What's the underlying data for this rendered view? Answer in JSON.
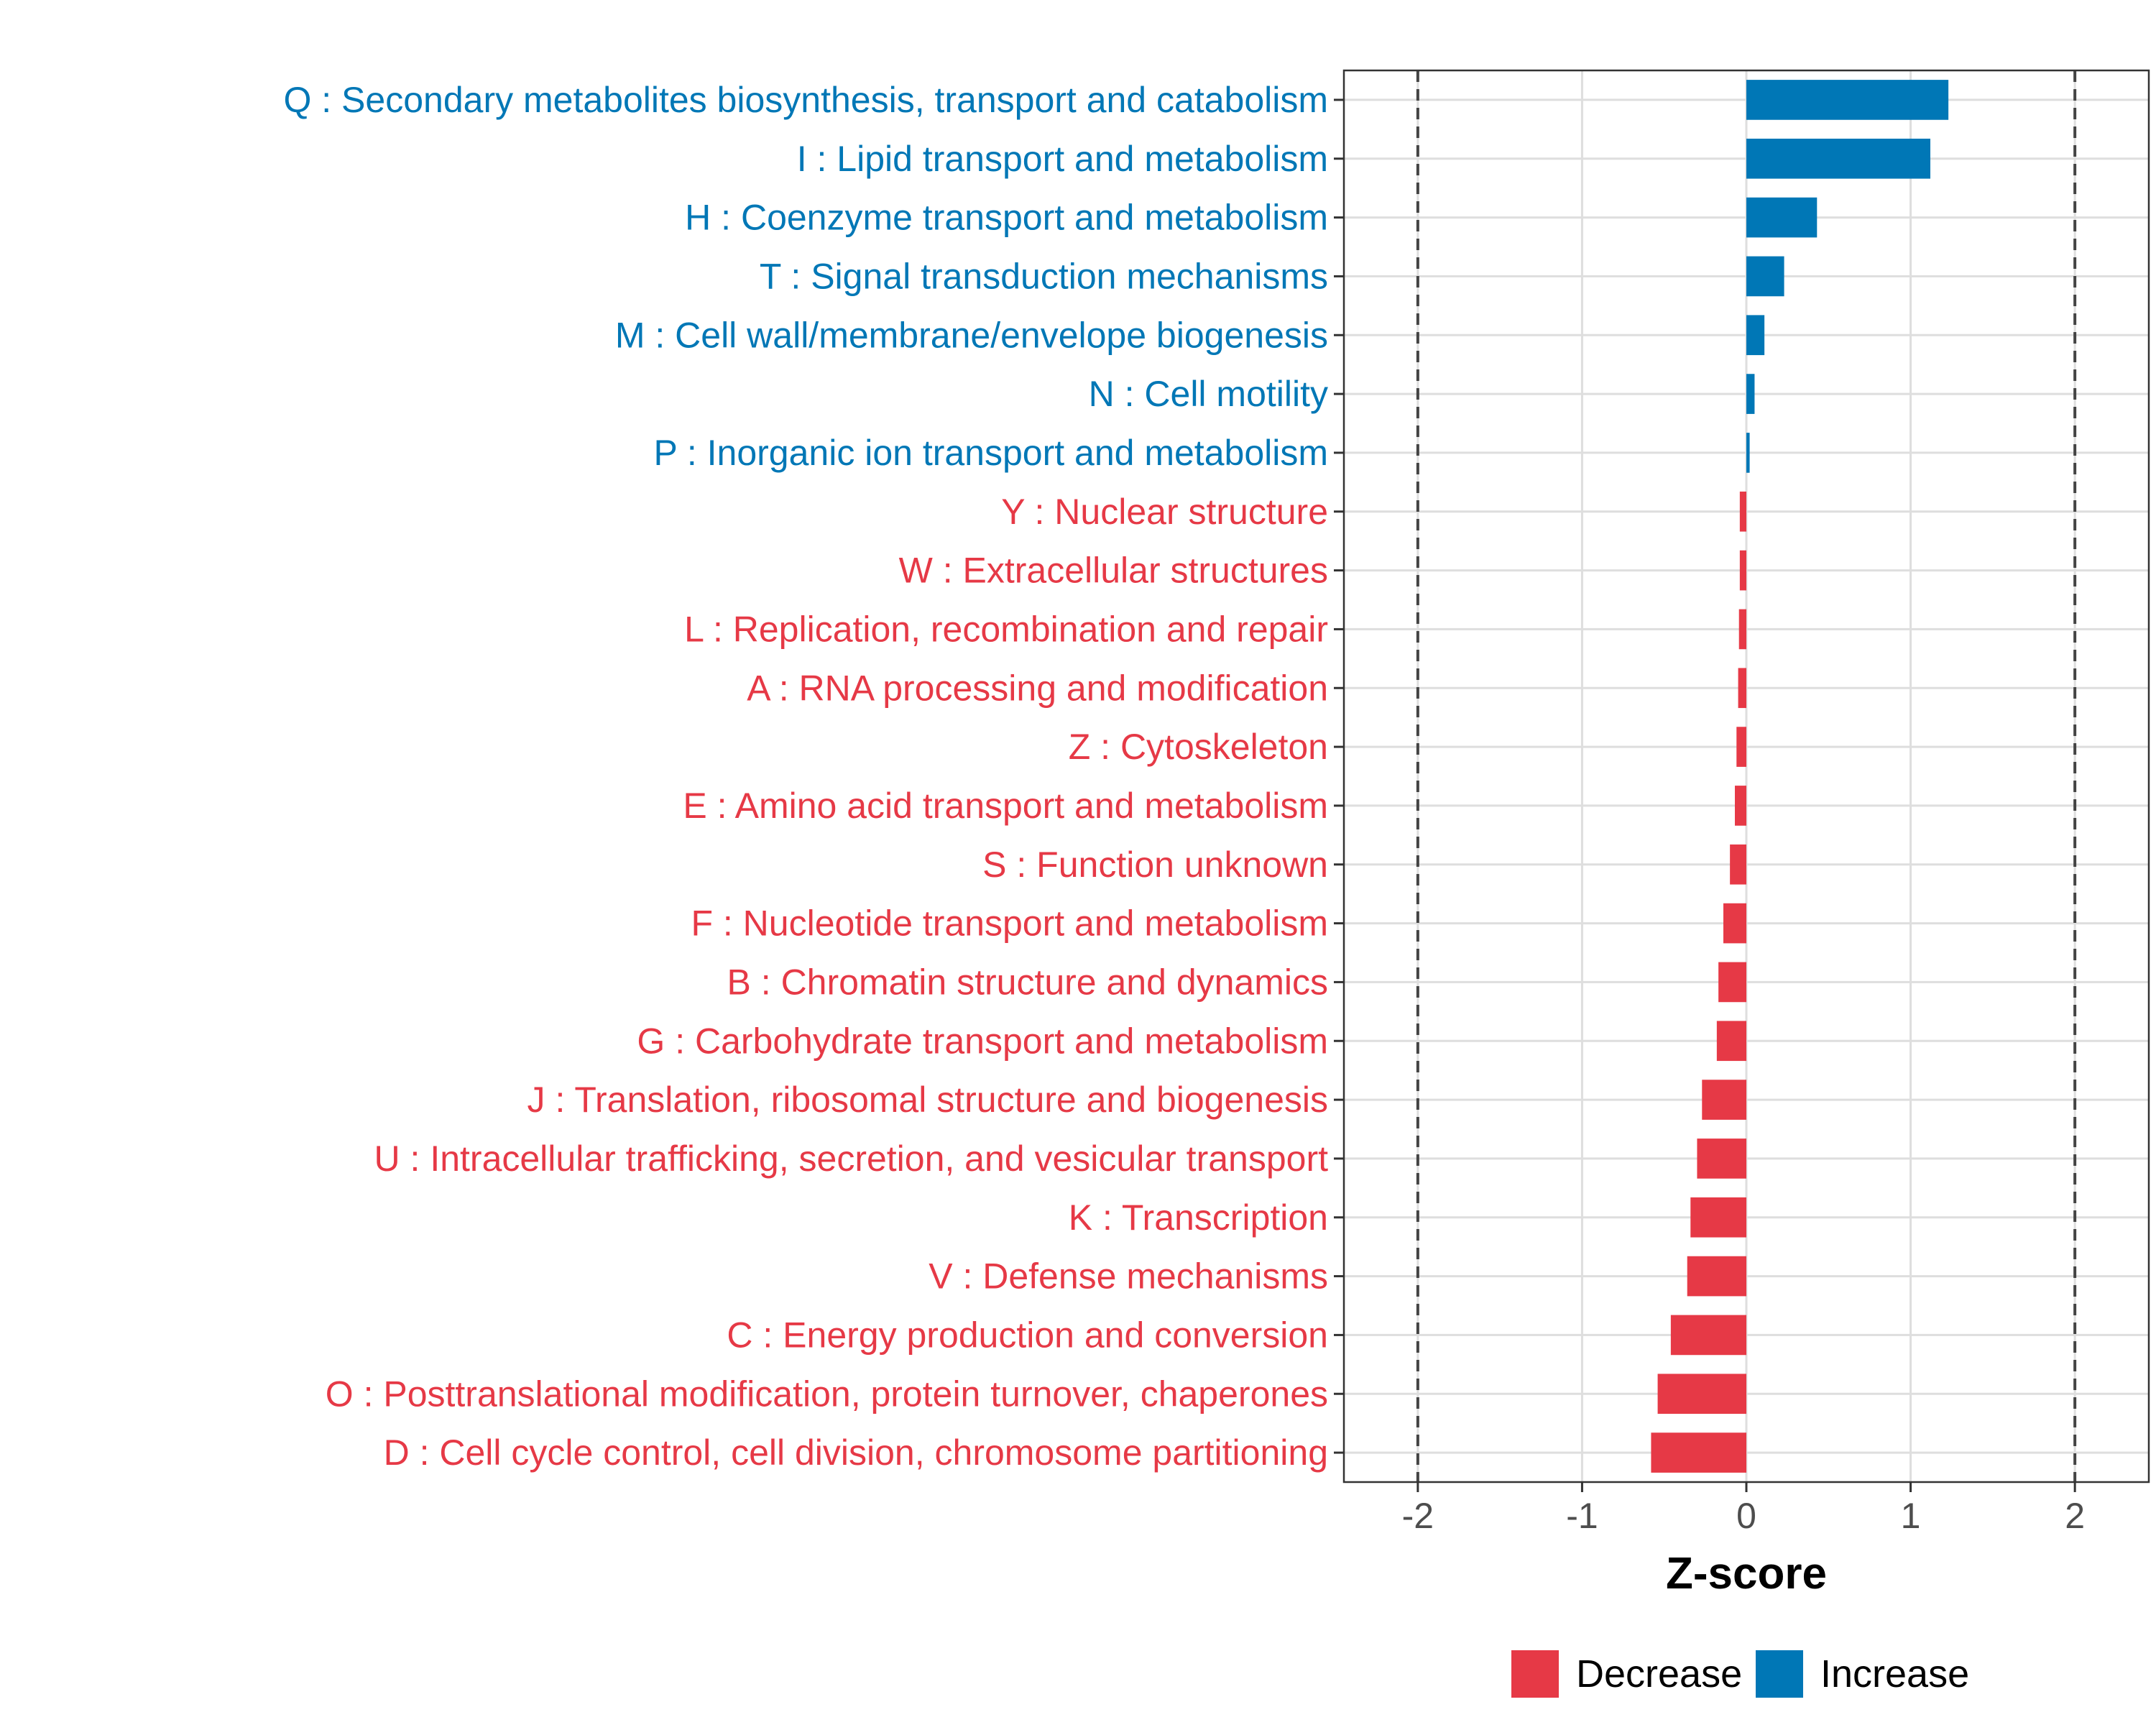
{
  "chart_data": {
    "type": "bar",
    "orientation": "horizontal",
    "categories": [
      "Q : Secondary metabolites biosynthesis, transport and catabolism",
      "I : Lipid transport and metabolism",
      "H : Coenzyme transport and metabolism",
      "T : Signal transduction mechanisms",
      "M : Cell wall/membrane/envelope biogenesis",
      "N : Cell motility",
      "P : Inorganic ion transport and metabolism",
      "Y : Nuclear structure",
      "W : Extracellular structures",
      "L : Replication, recombination and repair",
      "A : RNA processing and modification",
      "Z : Cytoskeleton",
      "E : Amino acid transport and metabolism",
      "S : Function unknown",
      "F : Nucleotide transport and metabolism",
      "B : Chromatin structure and dynamics",
      "G : Carbohydrate transport and metabolism",
      "J : Translation, ribosomal structure and biogenesis",
      "U : Intracellular trafficking, secretion, and vesicular transport",
      "K : Transcription",
      "V : Defense mechanisms",
      "C : Energy production and conversion",
      "O : Posttranslational modification, protein turnover, chaperones",
      "D : Cell cycle control, cell division, chromosome partitioning"
    ],
    "values": [
      1.23,
      1.12,
      0.43,
      0.23,
      0.11,
      0.05,
      0.02,
      -0.04,
      -0.04,
      -0.045,
      -0.05,
      -0.06,
      -0.07,
      -0.1,
      -0.14,
      -0.17,
      -0.18,
      -0.27,
      -0.3,
      -0.34,
      -0.36,
      -0.46,
      -0.54,
      -0.58
    ],
    "groups": [
      "Increase",
      "Increase",
      "Increase",
      "Increase",
      "Increase",
      "Increase",
      "Increase",
      "Decrease",
      "Decrease",
      "Decrease",
      "Decrease",
      "Decrease",
      "Decrease",
      "Decrease",
      "Decrease",
      "Decrease",
      "Decrease",
      "Decrease",
      "Decrease",
      "Decrease",
      "Decrease",
      "Decrease",
      "Decrease",
      "Decrease"
    ],
    "xlabel": "Z-score",
    "ylabel": "",
    "xlim": [
      -2.45,
      2.45
    ],
    "xticks": [
      -2,
      -1,
      0,
      1,
      2
    ],
    "xtick_labels": [
      "-2",
      "-1",
      "0",
      "1",
      "2"
    ],
    "reference_lines": [
      -2,
      2
    ],
    "grid": true,
    "legend": {
      "position": "bottom",
      "items": [
        {
          "label": "Decrease",
          "color": "#E63946"
        },
        {
          "label": "Increase",
          "color": "#0077B6"
        }
      ]
    },
    "colors": {
      "Decrease": "#E63946",
      "Increase": "#0077B6"
    }
  }
}
